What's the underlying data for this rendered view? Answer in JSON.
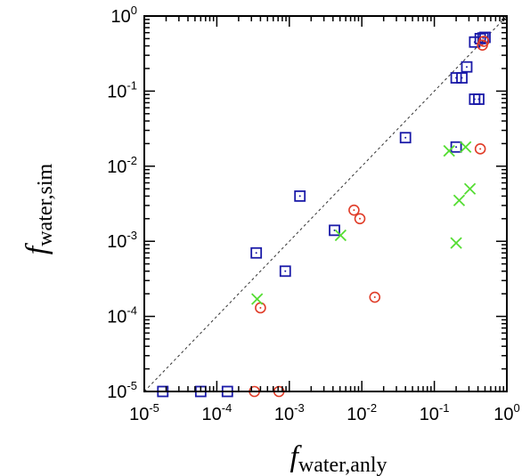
{
  "chart_data": {
    "type": "scatter",
    "title": "",
    "xlabel": {
      "main": "f",
      "sub": "water,anly"
    },
    "ylabel": {
      "main": "f",
      "sub": "water,sim"
    },
    "xscale": "log",
    "yscale": "log",
    "xlim": [
      1e-05,
      1
    ],
    "ylim": [
      1e-05,
      1
    ],
    "x_ticks": [
      {
        "value": 1e-05,
        "base": "10",
        "exp": "-5"
      },
      {
        "value": 0.0001,
        "base": "10",
        "exp": "-4"
      },
      {
        "value": 0.001,
        "base": "10",
        "exp": "-3"
      },
      {
        "value": 0.01,
        "base": "10",
        "exp": "-2"
      },
      {
        "value": 0.1,
        "base": "10",
        "exp": "-1"
      },
      {
        "value": 1,
        "base": "10",
        "exp": "0"
      }
    ],
    "y_ticks": [
      {
        "value": 1e-05,
        "base": "10",
        "exp": "-5"
      },
      {
        "value": 0.0001,
        "base": "10",
        "exp": "-4"
      },
      {
        "value": 0.001,
        "base": "10",
        "exp": "-3"
      },
      {
        "value": 0.01,
        "base": "10",
        "exp": "-2"
      },
      {
        "value": 0.1,
        "base": "10",
        "exp": "-1"
      },
      {
        "value": 1,
        "base": "10",
        "exp": "0"
      }
    ],
    "grid": false,
    "legend": "none",
    "reference_line": {
      "style": "dashed",
      "color": "#333333",
      "x": [
        1e-05,
        1
      ],
      "y": [
        1e-05,
        1
      ]
    },
    "series": [
      {
        "marker": "square-dot",
        "color": "#1a1aa8",
        "points": [
          [
            1.8e-05,
            1e-05
          ],
          [
            6e-05,
            1e-05
          ],
          [
            0.00014,
            1e-05
          ],
          [
            0.00035,
            0.0007
          ],
          [
            0.00088,
            0.0004
          ],
          [
            0.0014,
            0.004
          ],
          [
            0.0042,
            0.0014
          ],
          [
            0.04,
            0.024
          ],
          [
            0.2,
            0.018
          ],
          [
            0.2,
            0.15
          ],
          [
            0.24,
            0.15
          ],
          [
            0.28,
            0.21
          ],
          [
            0.36,
            0.078
          ],
          [
            0.41,
            0.078
          ],
          [
            0.36,
            0.45
          ],
          [
            0.43,
            0.5
          ],
          [
            0.47,
            0.51
          ],
          [
            0.5,
            0.52
          ]
        ]
      },
      {
        "marker": "circle-dot",
        "color": "#e03c28",
        "points": [
          [
            0.00033,
            1e-05
          ],
          [
            0.00072,
            1e-05
          ],
          [
            0.0004,
            0.00013
          ],
          [
            0.0078,
            0.0026
          ],
          [
            0.0094,
            0.002
          ],
          [
            0.0151,
            0.00018
          ],
          [
            0.43,
            0.017
          ],
          [
            0.46,
            0.41
          ],
          [
            0.48,
            0.46
          ]
        ]
      },
      {
        "marker": "x",
        "color": "#55dd33",
        "points": [
          [
            0.00036,
            0.00017
          ],
          [
            0.0051,
            0.0012
          ],
          [
            0.16,
            0.016
          ],
          [
            0.27,
            0.018
          ],
          [
            0.2,
            0.00095
          ],
          [
            0.22,
            0.0035
          ],
          [
            0.31,
            0.005
          ]
        ]
      }
    ]
  }
}
